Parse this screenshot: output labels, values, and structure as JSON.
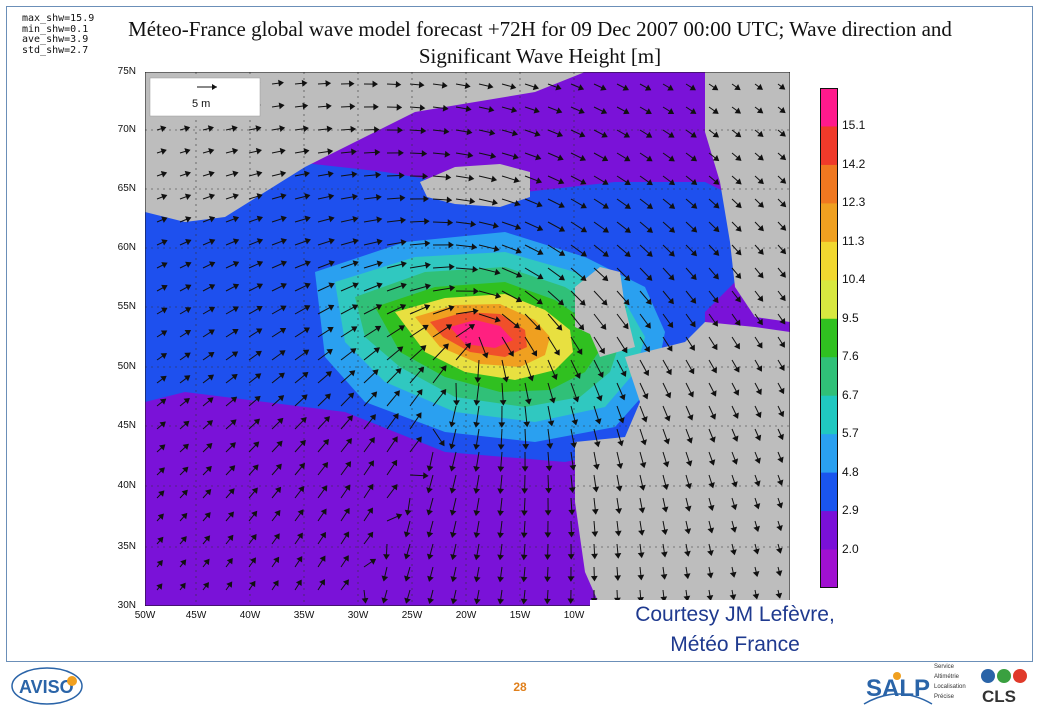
{
  "title": "Méteo-France global wave model forecast +72H for 09 Dec 2007 00:00 UTC; Wave direction and Significant Wave Height [m]",
  "stats": [
    "max_shw=15.9",
    "min_shw=0.1",
    "ave_shw=3.9",
    "std_shw=2.7"
  ],
  "scale_arrow_label": "5 m",
  "lat_labels": [
    "75N",
    "70N",
    "65N",
    "60N",
    "55N",
    "50N",
    "45N",
    "40N",
    "35N",
    "30N"
  ],
  "lon_labels": [
    "50W",
    "45W",
    "40W",
    "35W",
    "30W",
    "25W",
    "20W",
    "15W",
    "10W"
  ],
  "colorbar": {
    "labels": [
      "15.1",
      "14.2",
      "12.3",
      "11.3",
      "10.4",
      "9.5",
      "7.6",
      "6.7",
      "5.7",
      "4.8",
      "2.9",
      "2.0"
    ],
    "colors": [
      "#ff1a8c",
      "#f03a2a",
      "#f07820",
      "#f0a020",
      "#f2d830",
      "#d8e840",
      "#30c020",
      "#30c078",
      "#20c8c0",
      "#2aa0f0",
      "#1a55ee",
      "#7a10d8",
      "#a010d0"
    ]
  },
  "courtesy": [
    "Courtesy  JM Lefèvre,",
    "Météo France"
  ],
  "footer": {
    "page_number": "28",
    "left_logo": "AVISO",
    "salp_logo": "SALP",
    "cls_logo": "CLS",
    "salp_words": [
      "Service",
      "Altimétrie",
      "Localisation",
      "Précise"
    ]
  }
}
